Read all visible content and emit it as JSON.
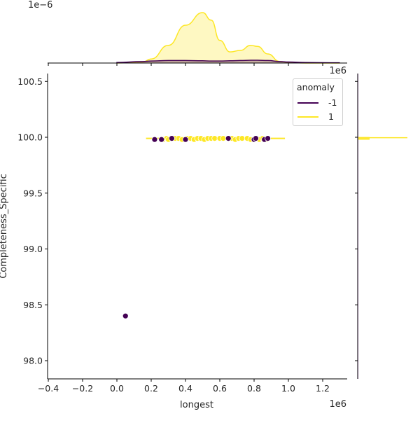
{
  "chart_data": {
    "type": "scatter",
    "title": "",
    "xlabel": "longest",
    "ylabel": "Completeness_Specific",
    "x_offset_label": "1e6",
    "top_marginal_offset_label": "1e−6",
    "xlim": [
      -0.42,
      1.35
    ],
    "ylim": [
      97.82,
      100.57
    ],
    "x_ticks": [
      "−0.4",
      "−0.2",
      "0.0",
      "0.2",
      "0.4",
      "0.6",
      "0.8",
      "1.0",
      "1.2"
    ],
    "x_tick_values": [
      -0.4,
      -0.2,
      0.0,
      0.2,
      0.4,
      0.6,
      0.8,
      1.0,
      1.2
    ],
    "y_ticks": [
      "100.5",
      "100.0",
      "99.5",
      "99.0",
      "98.5",
      "98.0"
    ],
    "y_tick_values": [
      100.5,
      100.0,
      99.5,
      99.0,
      98.5,
      98.0
    ],
    "legend": {
      "title": "anomaly",
      "entries": [
        {
          "label": "-1",
          "color": "#440154"
        },
        {
          "label": "1",
          "color": "#fde725"
        }
      ]
    },
    "series": [
      {
        "name": "-1",
        "color": "#440154",
        "points": [
          [
            0.05,
            98.4
          ],
          [
            0.22,
            99.98
          ],
          [
            0.26,
            99.98
          ],
          [
            0.32,
            99.99
          ],
          [
            0.4,
            99.98
          ],
          [
            0.65,
            99.99
          ],
          [
            0.8,
            99.98
          ],
          [
            0.81,
            99.99
          ],
          [
            0.86,
            99.98
          ],
          [
            0.88,
            99.99
          ]
        ]
      },
      {
        "name": "1",
        "color": "#fde725",
        "points": [
          [
            0.27,
            99.98
          ],
          [
            0.29,
            99.99
          ],
          [
            0.3,
            99.98
          ],
          [
            0.34,
            99.99
          ],
          [
            0.36,
            99.99
          ],
          [
            0.38,
            99.98
          ],
          [
            0.41,
            99.99
          ],
          [
            0.43,
            99.99
          ],
          [
            0.45,
            99.98
          ],
          [
            0.47,
            99.99
          ],
          [
            0.49,
            99.99
          ],
          [
            0.51,
            99.98
          ],
          [
            0.53,
            99.99
          ],
          [
            0.55,
            99.99
          ],
          [
            0.57,
            99.99
          ],
          [
            0.6,
            99.99
          ],
          [
            0.62,
            99.99
          ],
          [
            0.67,
            99.99
          ],
          [
            0.69,
            99.98
          ],
          [
            0.71,
            99.99
          ],
          [
            0.73,
            99.99
          ],
          [
            0.76,
            99.99
          ],
          [
            0.78,
            99.98
          ],
          [
            0.83,
            99.98
          ],
          [
            0.85,
            99.99
          ],
          [
            0.87,
            99.98
          ]
        ]
      }
    ],
    "top_marginal": {
      "type": "kde",
      "x": [
        0.0,
        0.15,
        0.2,
        0.3,
        0.4,
        0.5,
        0.55,
        0.6,
        0.66,
        0.72,
        0.78,
        0.82,
        0.88,
        0.95,
        1.0,
        1.1,
        1.3
      ],
      "series": [
        {
          "name": "1",
          "color": "#fde725",
          "values": [
            0,
            0.02,
            0.08,
            0.35,
            0.75,
            1.0,
            0.85,
            0.45,
            0.22,
            0.25,
            0.35,
            0.33,
            0.18,
            0.03,
            0.01,
            0,
            0
          ]
        },
        {
          "name": "-1",
          "color": "#440154",
          "values": [
            0.01,
            0.03,
            0.04,
            0.05,
            0.05,
            0.045,
            0.04,
            0.04,
            0.045,
            0.05,
            0.055,
            0.055,
            0.05,
            0.03,
            0.02,
            0.01,
            0.005
          ]
        }
      ]
    },
    "right_marginal": {
      "type": "kde",
      "note": "very narrow density spike at y≈100.0",
      "peak_y": 99.99
    }
  }
}
